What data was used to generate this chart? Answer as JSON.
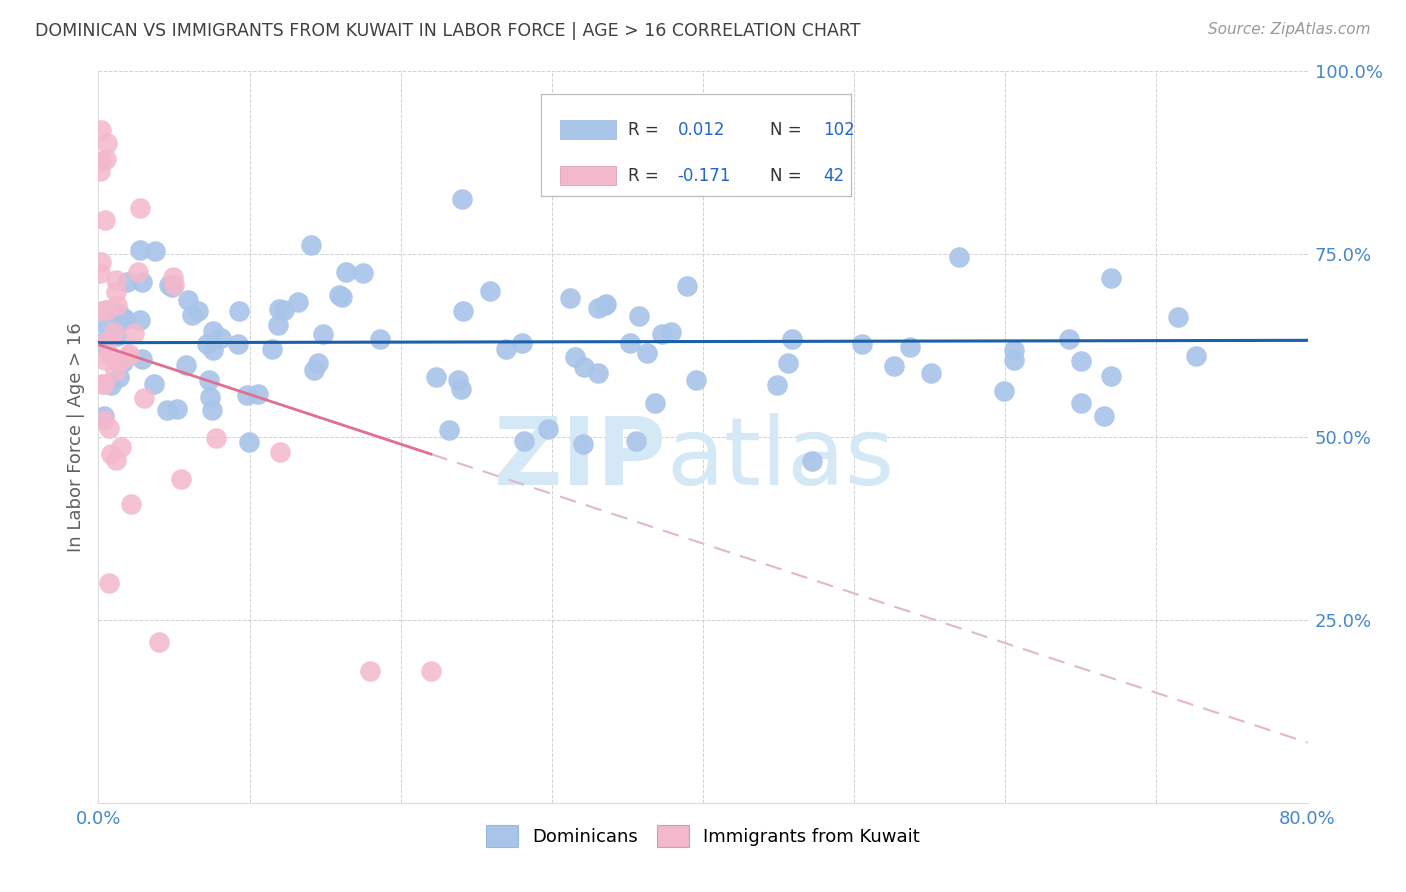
{
  "title": "DOMINICAN VS IMMIGRANTS FROM KUWAIT IN LABOR FORCE | AGE > 16 CORRELATION CHART",
  "source": "Source: ZipAtlas.com",
  "ylabel": "In Labor Force | Age > 16",
  "xlabel": "",
  "xlim": [
    0.0,
    0.8
  ],
  "ylim": [
    0.0,
    1.0
  ],
  "xtick_positions": [
    0.0,
    0.1,
    0.2,
    0.3,
    0.4,
    0.5,
    0.6,
    0.7,
    0.8
  ],
  "xticklabels": [
    "0.0%",
    "",
    "",
    "",
    "",
    "",
    "",
    "",
    "80.0%"
  ],
  "ytick_positions": [
    0.0,
    0.25,
    0.5,
    0.75,
    1.0
  ],
  "yticklabels": [
    "",
    "25.0%",
    "50.0%",
    "75.0%",
    "100.0%"
  ],
  "blue_R": 0.012,
  "blue_N": 102,
  "pink_R": -0.171,
  "pink_N": 42,
  "blue_dot_color": "#a8c4e8",
  "pink_dot_color": "#f4b8cc",
  "blue_line_color": "#1a5fa8",
  "pink_solid_line_color": "#e07090",
  "pink_dash_line_color": "#e0b8c8",
  "legend_blue_label": "Dominicans",
  "legend_pink_label": "Immigrants from Kuwait",
  "grid_color": "#cccccc",
  "background_color": "#ffffff",
  "title_color": "#404040",
  "axis_label_color": "#606060",
  "tick_color": "#4488cc",
  "legend_text_dark": "#333333",
  "legend_value_color": "#2266cc",
  "watermark_color": "#d5e8f5"
}
